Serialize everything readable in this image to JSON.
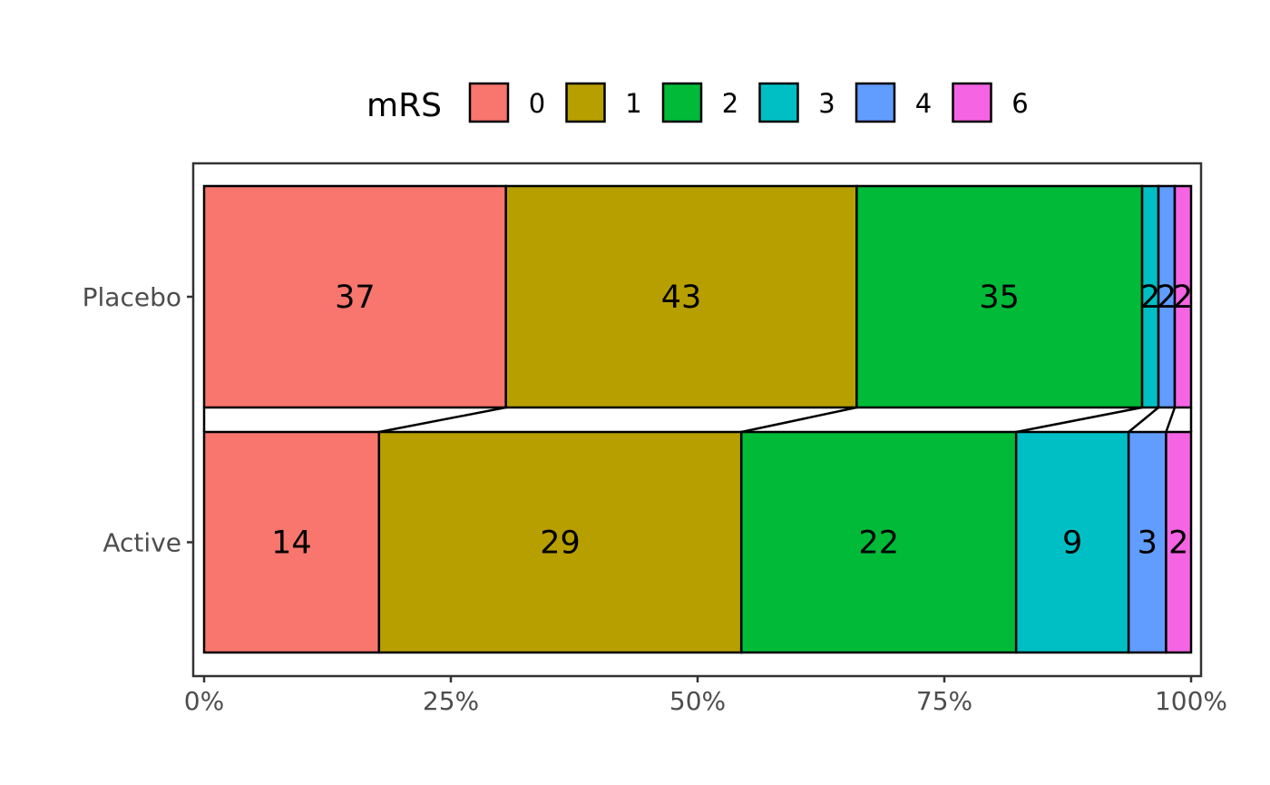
{
  "chart_data": {
    "type": "bar",
    "orientation": "horizontal",
    "stacked": "percent",
    "categories": [
      "Placebo",
      "Active"
    ],
    "series": [
      {
        "name": "0",
        "color": "#F8766D",
        "values": [
          37,
          14
        ]
      },
      {
        "name": "1",
        "color": "#B79F00",
        "values": [
          43,
          29
        ]
      },
      {
        "name": "2",
        "color": "#00BA38",
        "values": [
          35,
          22
        ]
      },
      {
        "name": "3",
        "color": "#00BFC4",
        "values": [
          2,
          9
        ]
      },
      {
        "name": "4",
        "color": "#619CFF",
        "values": [
          2,
          3
        ]
      },
      {
        "name": "6",
        "color": "#F564E3",
        "values": [
          2,
          2
        ]
      }
    ],
    "legend_title": "mRS",
    "legend_position": "top",
    "x_ticks": [
      "0%",
      "25%",
      "50%",
      "75%",
      "100%"
    ],
    "xlim": [
      0,
      1
    ],
    "grid": false
  }
}
